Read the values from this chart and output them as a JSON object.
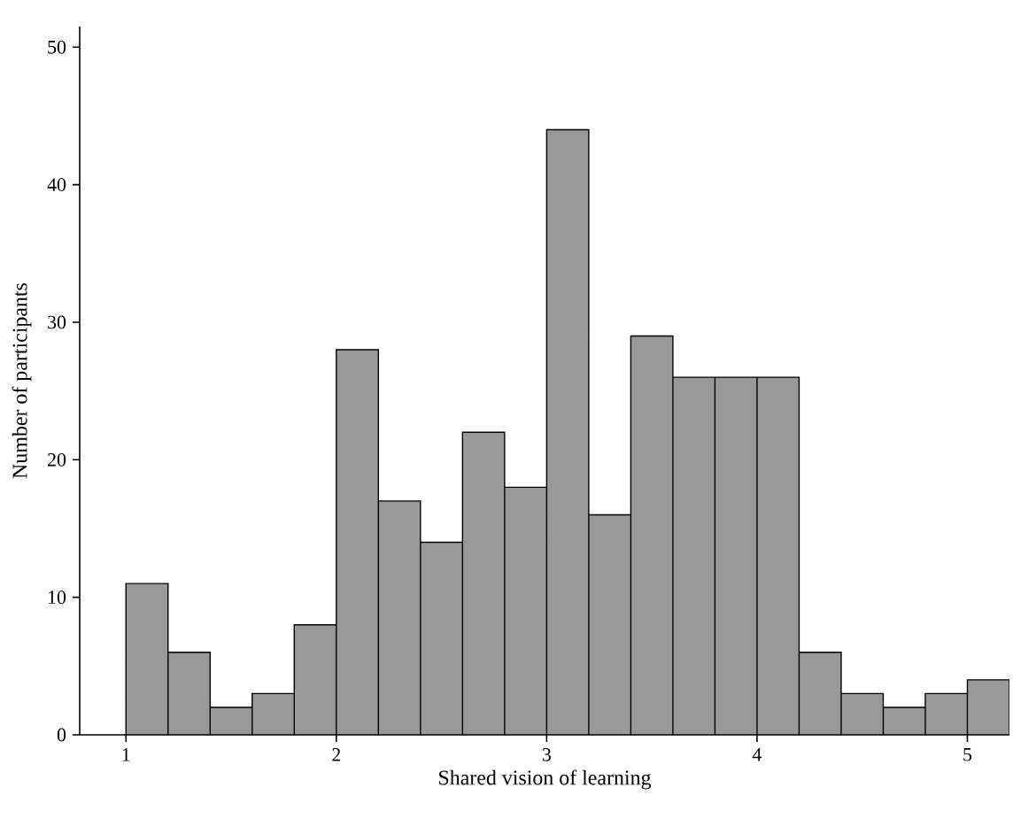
{
  "chart_data": {
    "type": "histogram",
    "xlabel": "Shared vision of learning",
    "ylabel": "Number of participants",
    "bins": [
      1.0,
      1.2,
      1.4,
      1.6,
      1.8,
      2.0,
      2.2,
      2.4,
      2.6,
      2.8,
      3.0,
      3.2,
      3.4,
      3.6,
      3.8,
      4.0,
      4.2,
      4.4,
      4.6,
      4.8,
      5.0,
      5.2
    ],
    "values": [
      11,
      6,
      2,
      3,
      8,
      28,
      17,
      14,
      22,
      18,
      44,
      16,
      29,
      26,
      26,
      26,
      6,
      3,
      2,
      3,
      4
    ],
    "color": "#999999",
    "xlim": [
      0.78,
      5.2
    ],
    "ylim": [
      0,
      51.5
    ],
    "xticks": [
      1,
      2,
      3,
      4,
      5
    ],
    "yticks": [
      0,
      10,
      20,
      30,
      40,
      50
    ],
    "grid": false
  }
}
